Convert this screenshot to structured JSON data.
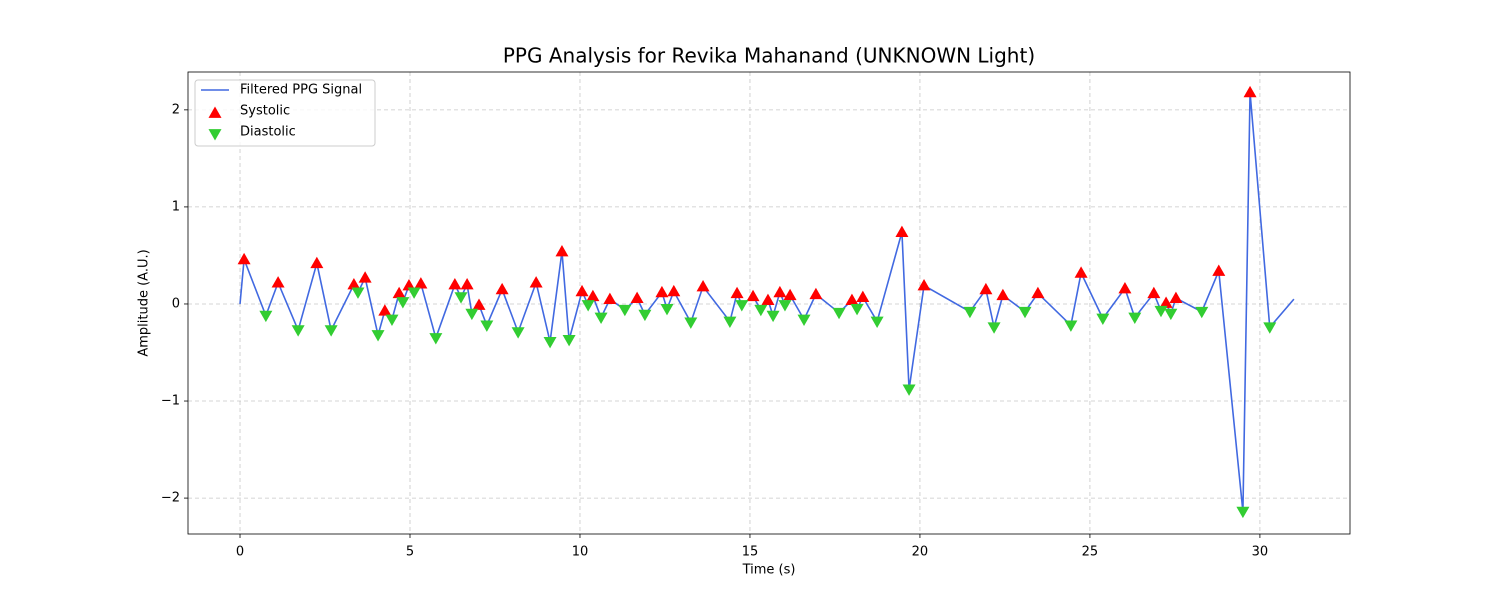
{
  "chart_data": {
    "type": "line",
    "title": "PPG Analysis for Revika Mahanand (UNKNOWN Light)",
    "x_label": "Time (s)",
    "y_label": "Amplitude (A.U.)",
    "xlim": [
      -1.53,
      32.65
    ],
    "ylim": [
      -2.37,
      2.39
    ],
    "xticks": [
      0,
      5,
      10,
      15,
      20,
      25,
      30
    ],
    "yticks": [
      {
        "value": -2,
        "label": "−2"
      },
      {
        "value": -1,
        "label": "−1"
      },
      0,
      1,
      2
    ],
    "grid": true,
    "legend": "upper left",
    "series": [
      {
        "name": "Filtered PPG Signal",
        "type": "line",
        "color": "#4169e1",
        "x": [
          0,
          0.12,
          0.76,
          1.12,
          1.71,
          2.26,
          2.68,
          3.35,
          3.47,
          3.68,
          4.06,
          4.26,
          4.47,
          4.68,
          4.79,
          4.97,
          5.12,
          5.32,
          5.76,
          6.32,
          6.5,
          6.68,
          6.82,
          7.03,
          7.26,
          7.71,
          8.18,
          8.71,
          9.12,
          9.47,
          9.68,
          10.06,
          10.24,
          10.38,
          10.62,
          10.88,
          11.32,
          11.68,
          11.91,
          12.41,
          12.56,
          12.76,
          13.26,
          13.62,
          14.41,
          14.62,
          14.76,
          15.09,
          15.32,
          15.53,
          15.68,
          15.88,
          16.03,
          16.18,
          16.59,
          16.94,
          17.62,
          18.0,
          18.15,
          18.32,
          18.74,
          19.47,
          19.68,
          20.12,
          21.47,
          21.94,
          22.18,
          22.44,
          23.09,
          23.47,
          24.44,
          24.74,
          25.38,
          26.03,
          26.32,
          26.88,
          27.09,
          27.24,
          27.38,
          27.53,
          28.29,
          28.79,
          29.5,
          29.71,
          30.29,
          31.0
        ],
        "values": [
          0,
          0.46,
          -0.12,
          0.22,
          -0.27,
          0.42,
          -0.27,
          0.2,
          0.12,
          0.27,
          -0.32,
          -0.07,
          -0.16,
          0.11,
          0.02,
          0.19,
          0.12,
          0.21,
          -0.35,
          0.2,
          0.07,
          0.2,
          -0.1,
          -0.01,
          -0.22,
          0.15,
          -0.29,
          0.22,
          -0.39,
          0.54,
          -0.37,
          0.13,
          -0.01,
          0.08,
          -0.14,
          0.05,
          -0.06,
          0.06,
          -0.11,
          0.12,
          -0.05,
          0.13,
          -0.19,
          0.18,
          -0.18,
          0.11,
          -0.01,
          0.08,
          -0.06,
          0.04,
          -0.12,
          0.12,
          -0.01,
          0.09,
          -0.16,
          0.1,
          -0.09,
          0.04,
          -0.05,
          0.07,
          -0.18,
          0.74,
          -0.88,
          0.19,
          -0.08,
          0.15,
          -0.24,
          0.09,
          -0.08,
          0.11,
          -0.22,
          0.32,
          -0.15,
          0.16,
          -0.14,
          0.11,
          -0.07,
          0.01,
          -0.1,
          0.06,
          -0.08,
          0.34,
          -2.14,
          2.18,
          -0.24,
          0.05
        ]
      },
      {
        "name": "Systolic",
        "type": "scatter",
        "marker": "triangle-up",
        "color": "#ff0000",
        "x": [
          0.12,
          1.12,
          2.26,
          3.35,
          3.68,
          4.26,
          4.68,
          4.97,
          5.32,
          6.32,
          6.68,
          7.03,
          7.71,
          8.71,
          9.47,
          10.06,
          10.38,
          10.88,
          11.68,
          12.41,
          12.76,
          13.62,
          14.62,
          15.09,
          15.53,
          15.88,
          16.18,
          16.94,
          18.0,
          18.32,
          19.47,
          20.12,
          21.94,
          22.44,
          23.47,
          24.74,
          26.03,
          26.88,
          27.24,
          27.53,
          28.79,
          29.71
        ],
        "values": [
          0.46,
          0.22,
          0.42,
          0.2,
          0.27,
          -0.07,
          0.11,
          0.19,
          0.21,
          0.2,
          0.2,
          -0.01,
          0.15,
          0.22,
          0.54,
          0.13,
          0.08,
          0.05,
          0.06,
          0.12,
          0.13,
          0.18,
          0.11,
          0.08,
          0.04,
          0.12,
          0.09,
          0.1,
          0.04,
          0.07,
          0.74,
          0.19,
          0.15,
          0.09,
          0.11,
          0.32,
          0.16,
          0.11,
          0.01,
          0.06,
          0.34,
          2.18
        ]
      },
      {
        "name": "Diastolic",
        "type": "scatter",
        "marker": "triangle-down",
        "color": "#32cd32",
        "x": [
          0.76,
          1.71,
          2.68,
          3.47,
          4.06,
          4.47,
          4.79,
          5.12,
          5.76,
          6.5,
          6.82,
          7.26,
          8.18,
          9.12,
          9.68,
          10.24,
          10.62,
          11.32,
          11.91,
          12.56,
          13.26,
          14.41,
          14.76,
          15.32,
          15.68,
          16.03,
          16.59,
          17.62,
          18.15,
          18.74,
          19.68,
          21.47,
          22.18,
          23.09,
          24.44,
          25.38,
          26.32,
          27.09,
          27.38,
          28.29,
          29.5,
          30.29
        ],
        "values": [
          -0.12,
          -0.27,
          -0.27,
          0.12,
          -0.32,
          -0.16,
          0.02,
          0.12,
          -0.35,
          0.07,
          -0.1,
          -0.22,
          -0.29,
          -0.39,
          -0.37,
          -0.01,
          -0.14,
          -0.06,
          -0.11,
          -0.05,
          -0.19,
          -0.18,
          -0.01,
          -0.06,
          -0.12,
          -0.01,
          -0.16,
          -0.09,
          -0.05,
          -0.18,
          -0.88,
          -0.08,
          -0.24,
          -0.08,
          -0.22,
          -0.15,
          -0.14,
          -0.07,
          -0.1,
          -0.08,
          -2.14,
          -0.24
        ]
      }
    ]
  }
}
